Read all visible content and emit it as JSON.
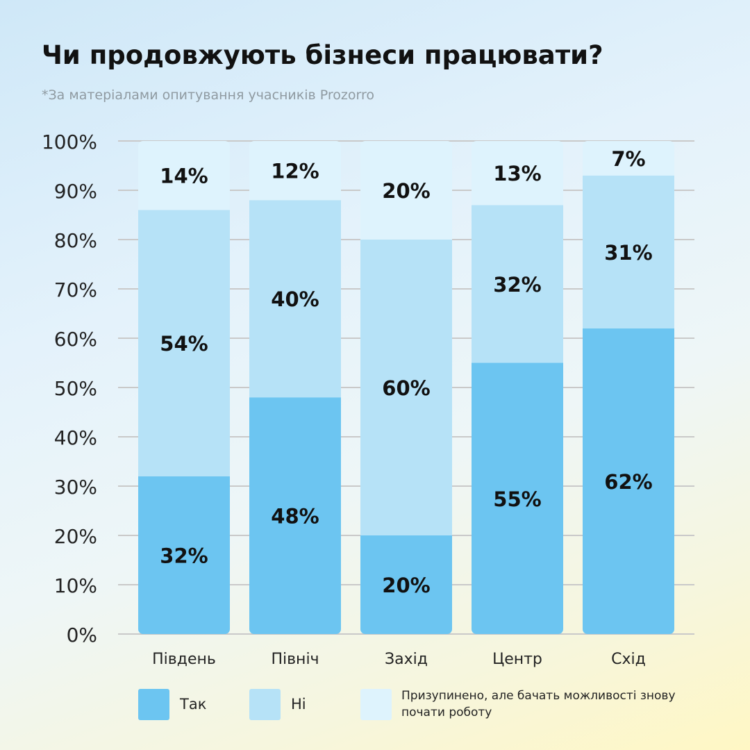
{
  "title": "Чи продовжують бізнеси працювати?",
  "subtitle": "*За матеріалами опитування учасників Prozorro",
  "colors": {
    "yes": "#6cc5f1",
    "no": "#b6e2f7",
    "paused": "#def3fd",
    "grid": "#c9c9c9",
    "text": "#111111",
    "axis_text": "#222222"
  },
  "chart_data": {
    "type": "bar",
    "stacked": true,
    "categories": [
      "Південь",
      "Північ",
      "Захід",
      "Центр",
      "Схід"
    ],
    "series": [
      {
        "name": "Так",
        "values": [
          32,
          48,
          20,
          55,
          62
        ],
        "labels": [
          "32%",
          "48%",
          "20%",
          "55%",
          "62%"
        ],
        "color_key": "yes"
      },
      {
        "name": "Ні",
        "values": [
          54,
          40,
          60,
          32,
          31
        ],
        "labels": [
          "54%",
          "40%",
          "60%",
          "32%",
          "31%"
        ],
        "color_key": "no"
      },
      {
        "name": "Призупинено, але бачать можливості знову почати роботу",
        "values": [
          14,
          12,
          20,
          13,
          7
        ],
        "labels": [
          "14%",
          "12%",
          "20%",
          "13%",
          "7%"
        ],
        "color_key": "paused"
      }
    ],
    "ylim": [
      0,
      100
    ],
    "yticks": [
      "0%",
      "10%",
      "20%",
      "30%",
      "40%",
      "50%",
      "60%",
      "70%",
      "80%",
      "90%",
      "100%"
    ],
    "grid": true,
    "legend_position": "bottom"
  },
  "legend": {
    "yes": "Так",
    "no": "Ні",
    "paused": "Призупинено, але бачать можливості знову почати роботу"
  }
}
